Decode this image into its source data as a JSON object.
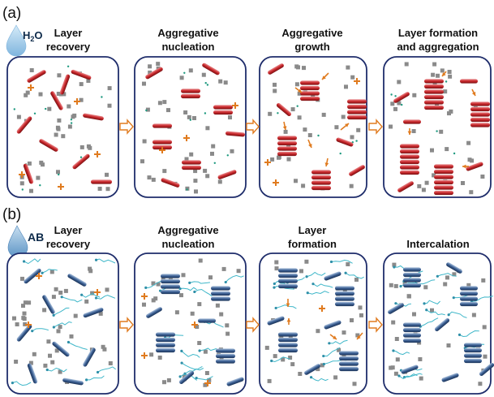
{
  "figure": {
    "panel_a": {
      "label": "(a)",
      "drop_label": "H",
      "drop_sub": "2",
      "drop_label_tail": "O",
      "stages": [
        {
          "line1": "Layer",
          "line2": "recovery"
        },
        {
          "line1": "Aggregative",
          "line2": "nucleation"
        },
        {
          "line1": "Aggregative",
          "line2": "growth"
        },
        {
          "line1": "Layer formation",
          "line2": "and aggregation"
        }
      ]
    },
    "panel_b": {
      "label": "(b)",
      "drop_label": "AB",
      "stages": [
        {
          "line1": "Layer",
          "line2": "recovery"
        },
        {
          "line1": "Aggregative",
          "line2": "nucleation"
        },
        {
          "line1": "Layer",
          "line2": "formation"
        },
        {
          "line1": "",
          "line2": "Intercalation"
        }
      ]
    },
    "colors": {
      "box_border": "#1f2d6b",
      "platelet_red": "#c8262a",
      "platelet_blue": "#3b5f93",
      "arrow_orange": "#e07b1f",
      "square_gray": "#8a8a8a",
      "dot_teal": "#1f9a80",
      "drop_blue": "#9bc6e6"
    },
    "icons": {
      "process_arrow": "hollow-right-arrow",
      "drop": "water-drop-icon",
      "cation": "plus-sign"
    }
  }
}
